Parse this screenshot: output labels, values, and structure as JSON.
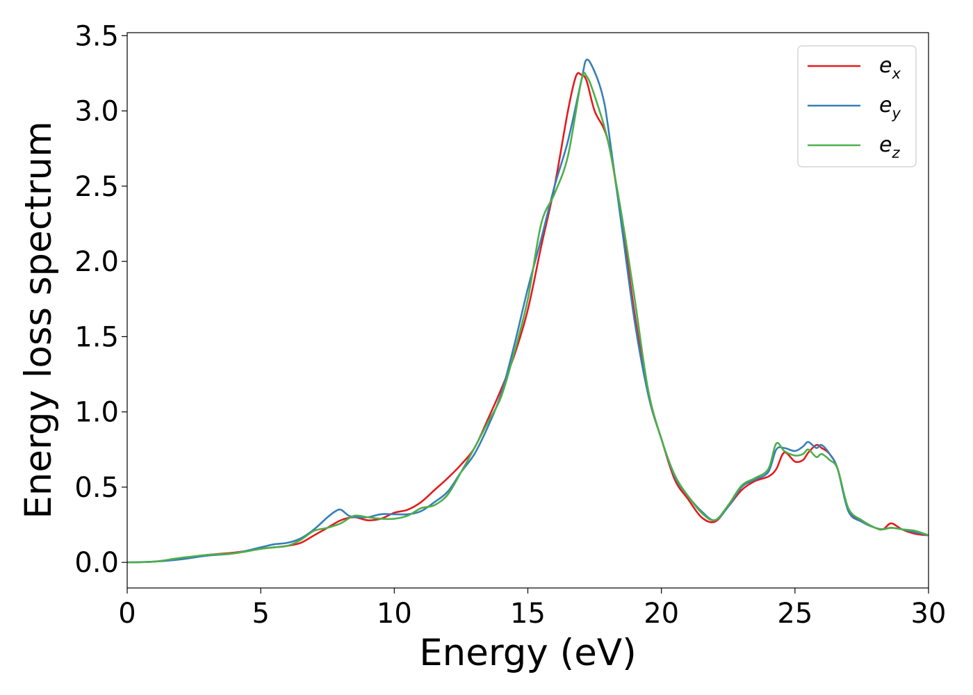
{
  "chart_data": {
    "type": "line",
    "xlabel": "Energy (eV)",
    "ylabel": "Energy loss spectrum",
    "xlim": [
      0,
      30
    ],
    "ylim": [
      -0.17,
      3.52
    ],
    "xticks": [
      0,
      5,
      10,
      15,
      20,
      25,
      30
    ],
    "xtick_labels": [
      "0",
      "5",
      "10",
      "15",
      "20",
      "25",
      "30"
    ],
    "yticks": [
      0.0,
      0.5,
      1.0,
      1.5,
      2.0,
      2.5,
      3.0,
      3.5
    ],
    "ytick_labels": [
      "0.0",
      "0.5",
      "1.0",
      "1.5",
      "2.0",
      "2.5",
      "3.0",
      "3.5"
    ],
    "grid": false,
    "legend_position": "top-right",
    "series": [
      {
        "name": "e_x",
        "label_main": "e",
        "label_sub": "x",
        "color": "#e41a1c",
        "x": [
          0,
          1,
          2,
          3,
          4,
          5,
          5.5,
          6,
          6.5,
          7,
          7.5,
          8,
          8.5,
          9,
          9.5,
          10,
          10.5,
          11,
          11.5,
          12,
          12.5,
          13,
          13.5,
          14,
          14.5,
          15,
          15.5,
          16,
          16.5,
          16.8,
          17,
          17.2,
          17.5,
          18,
          18.5,
          19,
          19.5,
          20,
          20.5,
          21,
          21.5,
          22,
          22.5,
          23,
          23.5,
          24,
          24.3,
          24.6,
          25,
          25.3,
          25.5,
          25.8,
          26,
          26.3,
          26.6,
          27,
          27.5,
          28,
          28.3,
          28.6,
          29,
          29.5,
          30
        ],
        "y": [
          0.0,
          0.005,
          0.025,
          0.05,
          0.065,
          0.09,
          0.1,
          0.11,
          0.13,
          0.18,
          0.23,
          0.28,
          0.3,
          0.28,
          0.29,
          0.33,
          0.35,
          0.4,
          0.48,
          0.56,
          0.65,
          0.76,
          0.95,
          1.15,
          1.38,
          1.68,
          2.1,
          2.5,
          3.0,
          3.23,
          3.24,
          3.2,
          3.0,
          2.8,
          2.28,
          1.65,
          1.12,
          0.82,
          0.55,
          0.42,
          0.3,
          0.27,
          0.37,
          0.48,
          0.54,
          0.57,
          0.62,
          0.73,
          0.67,
          0.68,
          0.73,
          0.78,
          0.76,
          0.72,
          0.62,
          0.35,
          0.28,
          0.23,
          0.22,
          0.26,
          0.22,
          0.19,
          0.18
        ]
      },
      {
        "name": "e_y",
        "label_main": "e",
        "label_sub": "y",
        "color": "#377eb8",
        "x": [
          0,
          1,
          2,
          3,
          4,
          5,
          5.5,
          6,
          6.5,
          7,
          7.5,
          7.8,
          8,
          8.3,
          8.6,
          9,
          9.5,
          10,
          10.5,
          11,
          11.5,
          12,
          12.5,
          13,
          13.5,
          14,
          14.5,
          15,
          15.5,
          16,
          16.5,
          17,
          17.2,
          17.5,
          17.8,
          18,
          18.5,
          19,
          19.5,
          20,
          20.5,
          21,
          21.5,
          22,
          22.5,
          23,
          23.5,
          24,
          24.3,
          24.6,
          25,
          25.3,
          25.5,
          25.8,
          26,
          26.3,
          26.6,
          27,
          27.5,
          28,
          28.3,
          28.6,
          29,
          29.5,
          30
        ],
        "y": [
          0.0,
          0.005,
          0.02,
          0.045,
          0.06,
          0.1,
          0.12,
          0.13,
          0.16,
          0.22,
          0.3,
          0.34,
          0.35,
          0.31,
          0.3,
          0.3,
          0.32,
          0.32,
          0.32,
          0.34,
          0.4,
          0.47,
          0.6,
          0.72,
          0.9,
          1.12,
          1.45,
          1.82,
          2.15,
          2.5,
          2.8,
          3.2,
          3.34,
          3.26,
          3.1,
          2.9,
          2.25,
          1.6,
          1.12,
          0.82,
          0.57,
          0.44,
          0.34,
          0.28,
          0.37,
          0.5,
          0.55,
          0.6,
          0.75,
          0.76,
          0.74,
          0.77,
          0.8,
          0.76,
          0.78,
          0.72,
          0.62,
          0.34,
          0.27,
          0.23,
          0.22,
          0.23,
          0.22,
          0.2,
          0.18
        ]
      },
      {
        "name": "e_z",
        "label_main": "e",
        "label_sub": "z",
        "color": "#4daf4a",
        "x": [
          0,
          1,
          2,
          3,
          4,
          5,
          5.5,
          6,
          6.5,
          7,
          7.5,
          8,
          8.5,
          9,
          9.5,
          10,
          10.5,
          11,
          11.5,
          12,
          12.5,
          13,
          13.5,
          14,
          14.5,
          15,
          15.5,
          16,
          16.5,
          17,
          17.2,
          17.5,
          18,
          18.5,
          19,
          19.5,
          20,
          20.5,
          21,
          21.5,
          22,
          22.5,
          23,
          23.5,
          24,
          24.3,
          24.6,
          25,
          25.3,
          25.5,
          25.8,
          26,
          26.3,
          26.6,
          27,
          27.5,
          28,
          28.3,
          28.6,
          29,
          29.5,
          30
        ],
        "y": [
          0.0,
          0.005,
          0.03,
          0.05,
          0.06,
          0.09,
          0.1,
          0.11,
          0.15,
          0.21,
          0.23,
          0.26,
          0.31,
          0.3,
          0.29,
          0.29,
          0.31,
          0.36,
          0.38,
          0.45,
          0.6,
          0.76,
          0.93,
          1.1,
          1.4,
          1.75,
          2.25,
          2.45,
          2.7,
          3.2,
          3.23,
          3.1,
          2.8,
          2.32,
          1.75,
          1.15,
          0.82,
          0.58,
          0.44,
          0.33,
          0.28,
          0.38,
          0.51,
          0.56,
          0.62,
          0.79,
          0.74,
          0.71,
          0.72,
          0.75,
          0.7,
          0.72,
          0.68,
          0.62,
          0.36,
          0.28,
          0.23,
          0.22,
          0.23,
          0.22,
          0.21,
          0.18
        ]
      }
    ]
  }
}
